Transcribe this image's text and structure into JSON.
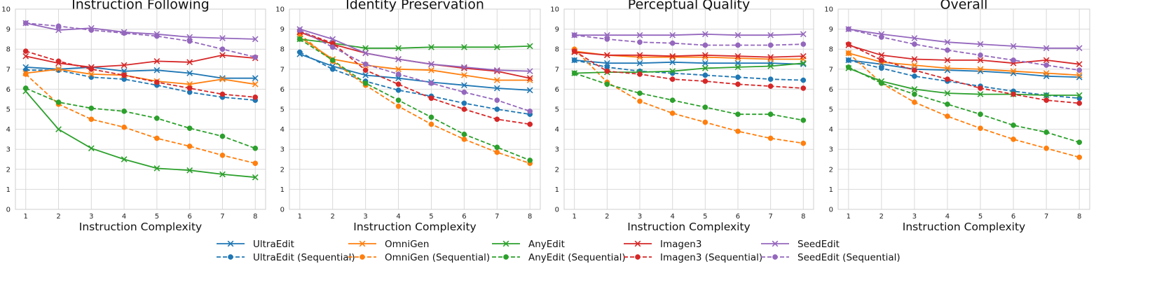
{
  "colors": {
    "UltraEdit": "#1f77b4",
    "OmniGen": "#ff7f0e",
    "AnyEdit": "#2ca02c",
    "Imagen3": "#d62728",
    "SeedEdit": "#9467bd"
  },
  "legend": [
    {
      "label": "UltraEdit",
      "model": "UltraEdit",
      "style": "solid"
    },
    {
      "label": "UltraEdit (Sequential)",
      "model": "UltraEdit",
      "style": "dashed"
    },
    {
      "label": "OmniGen",
      "model": "OmniGen",
      "style": "solid"
    },
    {
      "label": "OmniGen (Sequential)",
      "model": "OmniGen",
      "style": "dashed"
    },
    {
      "label": "AnyEdit",
      "model": "AnyEdit",
      "style": "solid"
    },
    {
      "label": "AnyEdit (Sequential)",
      "model": "AnyEdit",
      "style": "dashed"
    },
    {
      "label": "Imagen3",
      "model": "Imagen3",
      "style": "solid"
    },
    {
      "label": "Imagen3 (Sequential)",
      "model": "Imagen3",
      "style": "dashed"
    },
    {
      "label": "SeedEdit",
      "model": "SeedEdit",
      "style": "solid"
    },
    {
      "label": "SeedEdit (Sequential)",
      "model": "SeedEdit",
      "style": "dashed"
    }
  ],
  "chart_data": [
    {
      "type": "line",
      "title": "Instruction Following",
      "xlabel": "Instruction Complexity",
      "ylabel": "",
      "x": [
        1,
        2,
        3,
        4,
        5,
        6,
        7,
        8
      ],
      "xticks": [
        "1",
        "2",
        "3",
        "4",
        "5",
        "6",
        "7",
        "8"
      ],
      "yticks": [
        "0",
        "1",
        "2",
        "3",
        "4",
        "5",
        "6",
        "7",
        "8",
        "9",
        "10"
      ],
      "ylim": [
        0,
        10
      ],
      "grid": true,
      "series": [
        {
          "name": "UltraEdit",
          "model": "UltraEdit",
          "style": "solid",
          "values": [
            7.1,
            7.0,
            7.1,
            6.9,
            6.95,
            6.8,
            6.55,
            6.55
          ]
        },
        {
          "name": "UltraEdit (Sequential)",
          "model": "UltraEdit",
          "style": "dashed",
          "values": [
            6.95,
            6.95,
            6.6,
            6.5,
            6.2,
            5.85,
            5.6,
            5.45
          ]
        },
        {
          "name": "OmniGen",
          "model": "OmniGen",
          "style": "solid",
          "values": [
            6.8,
            7.0,
            6.75,
            6.7,
            6.4,
            6.25,
            6.5,
            6.25
          ]
        },
        {
          "name": "OmniGen (Sequential)",
          "model": "OmniGen",
          "style": "dashed",
          "values": [
            6.75,
            5.25,
            4.5,
            4.1,
            3.55,
            3.15,
            2.7,
            2.3
          ]
        },
        {
          "name": "AnyEdit",
          "model": "AnyEdit",
          "style": "solid",
          "values": [
            5.9,
            4.0,
            3.05,
            2.5,
            2.05,
            1.95,
            1.75,
            1.6
          ]
        },
        {
          "name": "AnyEdit (Sequential)",
          "model": "AnyEdit",
          "style": "dashed",
          "values": [
            6.05,
            5.35,
            5.05,
            4.9,
            4.55,
            4.05,
            3.65,
            3.05
          ]
        },
        {
          "name": "Imagen3",
          "model": "Imagen3",
          "style": "solid",
          "values": [
            7.65,
            7.3,
            7.1,
            7.2,
            7.4,
            7.35,
            7.7,
            7.55
          ]
        },
        {
          "name": "Imagen3 (Sequential)",
          "model": "Imagen3",
          "style": "dashed",
          "values": [
            7.9,
            7.4,
            7.0,
            6.7,
            6.35,
            6.05,
            5.75,
            5.6
          ]
        },
        {
          "name": "SeedEdit",
          "model": "SeedEdit",
          "style": "solid",
          "values": [
            9.3,
            8.95,
            9.05,
            8.85,
            8.75,
            8.6,
            8.55,
            8.5
          ]
        },
        {
          "name": "SeedEdit (Sequential)",
          "model": "SeedEdit",
          "style": "dashed",
          "values": [
            9.3,
            9.15,
            8.95,
            8.8,
            8.65,
            8.4,
            8.0,
            7.6
          ]
        }
      ]
    },
    {
      "type": "line",
      "title": "Identity Preservation",
      "xlabel": "Instruction Complexity",
      "ylabel": "",
      "x": [
        1,
        2,
        3,
        4,
        5,
        6,
        7,
        8
      ],
      "xticks": [
        "1",
        "2",
        "3",
        "4",
        "5",
        "6",
        "7",
        "8"
      ],
      "yticks": [
        "0",
        "1",
        "2",
        "3",
        "4",
        "5",
        "6",
        "7",
        "8",
        "9",
        "10"
      ],
      "ylim": [
        0,
        10
      ],
      "grid": true,
      "series": [
        {
          "name": "UltraEdit",
          "model": "UltraEdit",
          "style": "solid",
          "values": [
            7.75,
            7.15,
            6.7,
            6.55,
            6.35,
            6.2,
            6.05,
            5.95
          ]
        },
        {
          "name": "UltraEdit (Sequential)",
          "model": "UltraEdit",
          "style": "dashed",
          "values": [
            7.85,
            7.0,
            6.4,
            5.95,
            5.65,
            5.3,
            5.0,
            4.75
          ]
        },
        {
          "name": "OmniGen",
          "model": "OmniGen",
          "style": "solid",
          "values": [
            8.6,
            7.5,
            7.2,
            7.0,
            6.95,
            6.7,
            6.45,
            6.45
          ]
        },
        {
          "name": "OmniGen (Sequential)",
          "model": "OmniGen",
          "style": "dashed",
          "values": [
            8.75,
            7.4,
            6.2,
            5.15,
            4.25,
            3.5,
            2.85,
            2.3
          ]
        },
        {
          "name": "AnyEdit",
          "model": "AnyEdit",
          "style": "solid",
          "values": [
            8.5,
            8.3,
            8.05,
            8.05,
            8.1,
            8.1,
            8.1,
            8.15
          ]
        },
        {
          "name": "AnyEdit (Sequential)",
          "model": "AnyEdit",
          "style": "dashed",
          "values": [
            8.5,
            7.45,
            6.3,
            5.45,
            4.6,
            3.75,
            3.1,
            2.45
          ]
        },
        {
          "name": "Imagen3",
          "model": "Imagen3",
          "style": "solid",
          "values": [
            8.85,
            8.25,
            7.8,
            7.5,
            7.25,
            7.05,
            6.9,
            6.55
          ]
        },
        {
          "name": "Imagen3 (Sequential)",
          "model": "Imagen3",
          "style": "dashed",
          "values": [
            8.9,
            8.3,
            6.95,
            6.25,
            5.55,
            5.0,
            4.5,
            4.25
          ]
        },
        {
          "name": "SeedEdit",
          "model": "SeedEdit",
          "style": "solid",
          "values": [
            9.0,
            8.5,
            7.8,
            7.5,
            7.25,
            7.1,
            6.95,
            6.9
          ]
        },
        {
          "name": "SeedEdit (Sequential)",
          "model": "SeedEdit",
          "style": "dashed",
          "values": [
            8.95,
            8.1,
            7.25,
            6.75,
            6.3,
            5.85,
            5.45,
            4.9
          ]
        }
      ]
    },
    {
      "type": "line",
      "title": "Perceptual Quality",
      "xlabel": "Instruction Complexity",
      "ylabel": "",
      "x": [
        1,
        2,
        3,
        4,
        5,
        6,
        7,
        8
      ],
      "xticks": [
        "1",
        "2",
        "3",
        "4",
        "5",
        "6",
        "7",
        "8"
      ],
      "yticks": [
        "0",
        "1",
        "2",
        "3",
        "4",
        "5",
        "6",
        "7",
        "8",
        "9",
        "10"
      ],
      "ylim": [
        0,
        10
      ],
      "grid": true,
      "series": [
        {
          "name": "UltraEdit",
          "model": "UltraEdit",
          "style": "solid",
          "values": [
            7.45,
            7.3,
            7.3,
            7.35,
            7.3,
            7.3,
            7.3,
            7.25
          ]
        },
        {
          "name": "UltraEdit (Sequential)",
          "model": "UltraEdit",
          "style": "dashed",
          "values": [
            7.45,
            7.1,
            6.9,
            6.8,
            6.7,
            6.6,
            6.5,
            6.45
          ]
        },
        {
          "name": "OmniGen",
          "model": "OmniGen",
          "style": "solid",
          "values": [
            7.9,
            7.7,
            7.6,
            7.6,
            7.6,
            7.55,
            7.5,
            7.5
          ]
        },
        {
          "name": "OmniGen (Sequential)",
          "model": "OmniGen",
          "style": "dashed",
          "values": [
            8.0,
            6.35,
            5.4,
            4.8,
            4.35,
            3.9,
            3.55,
            3.3
          ]
        },
        {
          "name": "AnyEdit",
          "model": "AnyEdit",
          "style": "solid",
          "values": [
            6.8,
            6.85,
            6.85,
            6.9,
            7.05,
            7.1,
            7.15,
            7.3
          ]
        },
        {
          "name": "AnyEdit (Sequential)",
          "model": "AnyEdit",
          "style": "dashed",
          "values": [
            6.8,
            6.25,
            5.8,
            5.45,
            5.1,
            4.75,
            4.75,
            4.45
          ]
        },
        {
          "name": "Imagen3",
          "model": "Imagen3",
          "style": "solid",
          "values": [
            7.85,
            7.7,
            7.7,
            7.65,
            7.7,
            7.65,
            7.6,
            7.65
          ]
        },
        {
          "name": "Imagen3 (Sequential)",
          "model": "Imagen3",
          "style": "dashed",
          "values": [
            7.9,
            6.9,
            6.75,
            6.5,
            6.4,
            6.25,
            6.15,
            6.05
          ]
        },
        {
          "name": "SeedEdit",
          "model": "SeedEdit",
          "style": "solid",
          "values": [
            8.7,
            8.7,
            8.7,
            8.7,
            8.75,
            8.7,
            8.7,
            8.75
          ]
        },
        {
          "name": "SeedEdit (Sequential)",
          "model": "SeedEdit",
          "style": "dashed",
          "values": [
            8.7,
            8.5,
            8.35,
            8.3,
            8.2,
            8.2,
            8.2,
            8.25
          ]
        }
      ]
    },
    {
      "type": "line",
      "title": "Overall",
      "xlabel": "Instruction Complexity",
      "ylabel": "",
      "x": [
        1,
        2,
        3,
        4,
        5,
        6,
        7,
        8
      ],
      "xticks": [
        "1",
        "2",
        "3",
        "4",
        "5",
        "6",
        "7",
        "8"
      ],
      "yticks": [
        "0",
        "1",
        "2",
        "3",
        "4",
        "5",
        "6",
        "7",
        "8",
        "9",
        "10"
      ],
      "ylim": [
        0,
        10
      ],
      "grid": true,
      "series": [
        {
          "name": "UltraEdit",
          "model": "UltraEdit",
          "style": "solid",
          "values": [
            7.45,
            7.25,
            7.0,
            6.95,
            6.9,
            6.8,
            6.65,
            6.6
          ]
        },
        {
          "name": "UltraEdit (Sequential)",
          "model": "UltraEdit",
          "style": "dashed",
          "values": [
            7.45,
            7.05,
            6.65,
            6.4,
            6.15,
            5.9,
            5.7,
            5.55
          ]
        },
        {
          "name": "OmniGen",
          "model": "OmniGen",
          "style": "solid",
          "values": [
            7.8,
            7.35,
            7.2,
            7.05,
            7.0,
            6.9,
            6.8,
            6.7
          ]
        },
        {
          "name": "OmniGen (Sequential)",
          "model": "OmniGen",
          "style": "dashed",
          "values": [
            7.8,
            6.3,
            5.35,
            4.65,
            4.05,
            3.5,
            3.05,
            2.6
          ]
        },
        {
          "name": "AnyEdit",
          "model": "AnyEdit",
          "style": "solid",
          "values": [
            7.05,
            6.4,
            6.0,
            5.8,
            5.75,
            5.75,
            5.7,
            5.7
          ]
        },
        {
          "name": "AnyEdit (Sequential)",
          "model": "AnyEdit",
          "style": "dashed",
          "values": [
            7.1,
            6.3,
            5.75,
            5.25,
            4.75,
            4.2,
            3.85,
            3.35
          ]
        },
        {
          "name": "Imagen3",
          "model": "Imagen3",
          "style": "solid",
          "values": [
            8.2,
            7.7,
            7.5,
            7.45,
            7.45,
            7.3,
            7.45,
            7.25
          ]
        },
        {
          "name": "Imagen3 (Sequential)",
          "model": "Imagen3",
          "style": "dashed",
          "values": [
            8.25,
            7.45,
            6.95,
            6.5,
            6.05,
            5.75,
            5.45,
            5.3
          ]
        },
        {
          "name": "SeedEdit",
          "model": "SeedEdit",
          "style": "solid",
          "values": [
            9.0,
            8.75,
            8.55,
            8.35,
            8.25,
            8.15,
            8.05,
            8.05
          ]
        },
        {
          "name": "SeedEdit (Sequential)",
          "model": "SeedEdit",
          "style": "dashed",
          "values": [
            9.0,
            8.6,
            8.25,
            7.95,
            7.7,
            7.45,
            7.2,
            6.95
          ]
        }
      ]
    }
  ]
}
